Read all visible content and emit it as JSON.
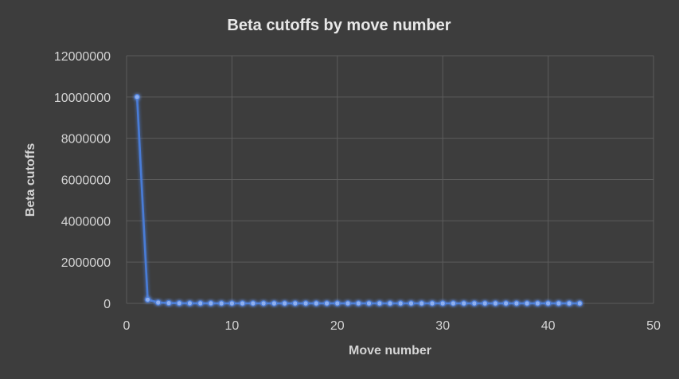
{
  "chart_data": {
    "type": "scatter",
    "title": "Beta cutoffs by move number",
    "xlabel": "Move number",
    "ylabel": "Beta cutoffs",
    "xlim": [
      0,
      50
    ],
    "ylim": [
      0,
      12000000
    ],
    "x_ticks": [
      "0",
      "10",
      "20",
      "30",
      "40",
      "50"
    ],
    "y_ticks": [
      "0",
      "2000000",
      "4000000",
      "6000000",
      "8000000",
      "10000000",
      "12000000"
    ],
    "grid": true,
    "legend": "none",
    "series_color": "#4a7bd6",
    "series": [
      {
        "x": [
          1,
          2,
          3,
          4,
          5,
          6,
          7,
          8,
          9,
          10,
          11,
          12,
          13,
          14,
          15,
          16,
          17,
          18,
          19,
          20,
          21,
          22,
          23,
          24,
          25,
          26,
          27,
          28,
          29,
          30,
          31,
          32,
          33,
          34,
          35,
          36,
          37,
          38,
          39,
          40,
          41,
          42,
          43
        ],
        "values": [
          10000000,
          180000,
          40000,
          15000,
          8000,
          5000,
          3000,
          2000,
          1500,
          1000,
          800,
          600,
          500,
          400,
          300,
          250,
          200,
          150,
          120,
          100,
          90,
          80,
          70,
          60,
          50,
          45,
          40,
          35,
          30,
          25,
          20,
          18,
          16,
          14,
          12,
          10,
          9,
          8,
          7,
          6,
          5,
          4,
          3
        ]
      }
    ]
  }
}
